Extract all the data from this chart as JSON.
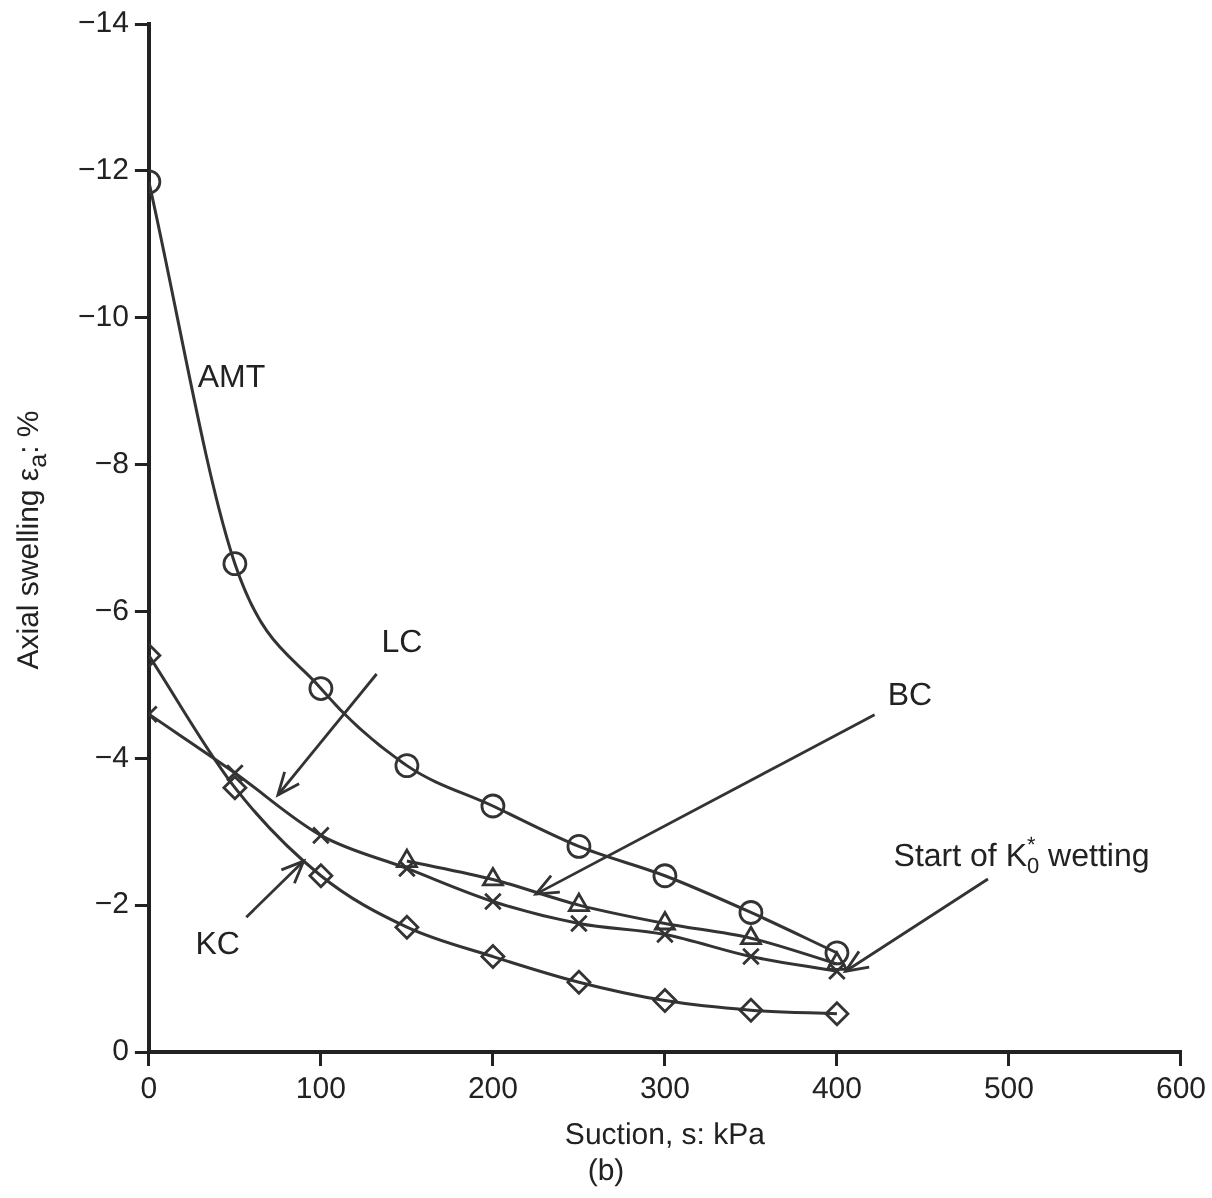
{
  "chart_data": {
    "type": "line",
    "title": "(b)",
    "xlabel": "Suction, s: kPa",
    "ylabel": "Axial swelling ε$_{a}$: %",
    "x": [
      0,
      50,
      100,
      150,
      200,
      250,
      300,
      350,
      400
    ],
    "series": [
      {
        "color": "#333333",
        "marker": "circle",
        "values": [
          -11.85,
          -6.65,
          -4.95,
          -3.9,
          -3.35,
          -2.8,
          -2.4,
          -1.9,
          -1.35
        ]
      },
      {
        "color": "#333333",
        "marker": "cross",
        "values": [
          -4.6,
          -3.8,
          -2.95,
          -2.5,
          -2.05,
          -1.75,
          -1.6,
          -1.3,
          -1.1
        ]
      },
      {
        "color": "#333333",
        "marker": "triangle",
        "x": [
          150,
          200,
          250,
          300,
          350,
          400
        ],
        "values": [
          -2.6,
          -2.35,
          -2.0,
          -1.75,
          -1.55,
          -1.2
        ]
      },
      {
        "color": "#333333",
        "marker": "diamond",
        "values": [
          -5.4,
          -3.6,
          -2.4,
          -1.7,
          -1.3,
          -0.95,
          -0.7,
          -0.57,
          -0.52
        ]
      }
    ],
    "xlim": [
      0,
      600
    ],
    "xticks": [
      0,
      100,
      200,
      300,
      400,
      500,
      600
    ],
    "ylim": [
      0,
      -14
    ],
    "yticks": [
      0,
      {
        "value": -2,
        "label": "−2"
      },
      {
        "value": -4,
        "label": "−4"
      },
      {
        "value": -6,
        "label": "−6"
      },
      {
        "value": -8,
        "label": "−8"
      },
      {
        "value": -10,
        "label": "−10"
      },
      {
        "value": -12,
        "label": "−12"
      },
      {
        "value": -14,
        "label": "−14"
      }
    ],
    "annotations": [
      "AMT",
      {
        "text": "LC",
        "x": 75,
        "y": -3.5
      },
      {
        "text": "BC",
        "x": 225,
        "y": -2.15
      },
      {
        "text": "KC",
        "x": 90,
        "y": -2.6
      },
      {
        "text": "Start of K$^{*}$$_{0}$ wetting",
        "x": 405,
        "y": -1.1
      }
    ],
    "grid": false,
    "legend": false,
    "line_style": "solid"
  }
}
